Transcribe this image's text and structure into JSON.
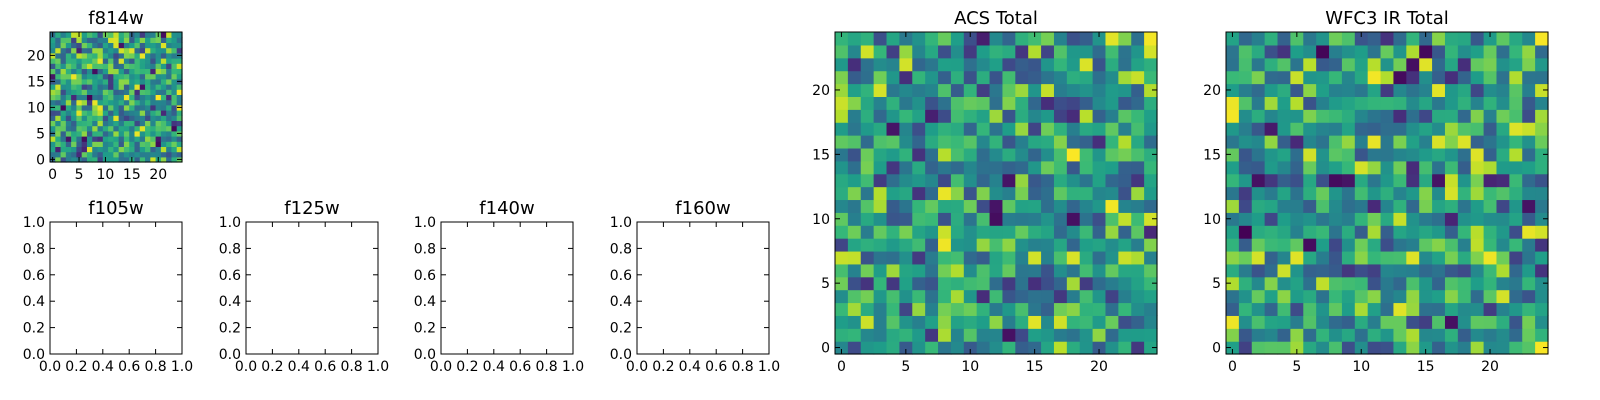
{
  "chart_data": [
    {
      "type": "heatmap",
      "title": "f814w",
      "xlim": [
        -0.5,
        24.5
      ],
      "ylim": [
        -0.5,
        24.5
      ],
      "xticks": [
        0,
        5,
        10,
        15,
        20
      ],
      "yticks": [
        0,
        5,
        10,
        15,
        20
      ],
      "xticklabels": [
        "0",
        "5",
        "10",
        "15",
        "20"
      ],
      "yticklabels": [
        "0",
        "5",
        "10",
        "15",
        "20"
      ],
      "grid_size": [
        25,
        25
      ],
      "colormap": "viridis",
      "value_range": [
        0,
        1
      ],
      "seed": 11,
      "description_values": "25x25 grid of noise values rendered with viridis colormap"
    },
    {
      "type": "heatmap",
      "title": "ACS Total",
      "xlim": [
        -0.5,
        24.5
      ],
      "ylim": [
        -0.5,
        24.5
      ],
      "xticks": [
        0,
        5,
        10,
        15,
        20
      ],
      "yticks": [
        0,
        5,
        10,
        15,
        20
      ],
      "xticklabels": [
        "0",
        "5",
        "10",
        "15",
        "20"
      ],
      "yticklabels": [
        "0",
        "5",
        "10",
        "15",
        "20"
      ],
      "grid_size": [
        25,
        25
      ],
      "colormap": "viridis",
      "value_range": [
        0,
        1
      ],
      "seed": 37
    },
    {
      "type": "heatmap",
      "title": "WFC3 IR Total",
      "xlim": [
        -0.5,
        24.5
      ],
      "ylim": [
        -0.5,
        24.5
      ],
      "xticks": [
        0,
        5,
        10,
        15,
        20
      ],
      "yticks": [
        0,
        5,
        10,
        15,
        20
      ],
      "xticklabels": [
        "0",
        "5",
        "10",
        "15",
        "20"
      ],
      "yticklabels": [
        "0",
        "5",
        "10",
        "15",
        "20"
      ],
      "grid_size": [
        25,
        25
      ],
      "colormap": "viridis",
      "value_range": [
        0,
        1
      ],
      "seed": 73
    },
    {
      "type": "empty",
      "title": "f105w",
      "xlim": [
        0,
        1
      ],
      "ylim": [
        0,
        1
      ],
      "xticklabels": [
        "0.0",
        "0.2",
        "0.4",
        "0.6",
        "0.8",
        "1.0"
      ],
      "yticklabels": [
        "0.0",
        "0.2",
        "0.4",
        "0.6",
        "0.8",
        "1.0"
      ]
    },
    {
      "type": "empty",
      "title": "f125w",
      "xlim": [
        0,
        1
      ],
      "ylim": [
        0,
        1
      ],
      "xticklabels": [
        "0.0",
        "0.2",
        "0.4",
        "0.6",
        "0.8",
        "1.0"
      ],
      "yticklabels": [
        "0.0",
        "0.2",
        "0.4",
        "0.6",
        "0.8",
        "1.0"
      ]
    },
    {
      "type": "empty",
      "title": "f140w",
      "xlim": [
        0,
        1
      ],
      "ylim": [
        0,
        1
      ],
      "xticklabels": [
        "0.0",
        "0.2",
        "0.4",
        "0.6",
        "0.8",
        "1.0"
      ],
      "yticklabels": [
        "0.0",
        "0.2",
        "0.4",
        "0.6",
        "0.8",
        "1.0"
      ]
    },
    {
      "type": "empty",
      "title": "f160w",
      "xlim": [
        0,
        1
      ],
      "ylim": [
        0,
        1
      ],
      "xticklabels": [
        "0.0",
        "0.2",
        "0.4",
        "0.6",
        "0.8",
        "1.0"
      ],
      "yticklabels": [
        "0.0",
        "0.2",
        "0.4",
        "0.6",
        "0.8",
        "1.0"
      ]
    }
  ]
}
